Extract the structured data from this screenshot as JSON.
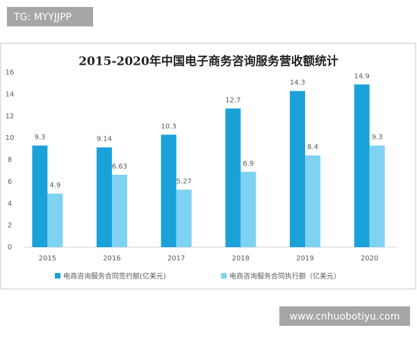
{
  "chart_data": {
    "type": "bar",
    "title": "2015-2020年中国电子商务咨询服务营收额统计",
    "categories": [
      "2015",
      "2016",
      "2017",
      "2018",
      "2019",
      "2020"
    ],
    "series": [
      {
        "name": "电商咨询服务合同签约额(亿美元)",
        "color": "#1aa2d8",
        "values": [
          9.3,
          9.14,
          10.3,
          12.7,
          14.3,
          14.9
        ]
      },
      {
        "name": "电商咨询服务合同执行额（亿美元）",
        "color": "#7fd2f1",
        "values": [
          4.9,
          6.63,
          5.27,
          6.9,
          8.4,
          9.3
        ]
      }
    ],
    "ylim": [
      0,
      16
    ],
    "yticks": [
      0,
      2,
      4,
      6,
      8,
      10,
      12,
      14,
      16
    ],
    "grid": false,
    "legend": "bottom"
  },
  "watermarks": [
    "TG: MYYJJPP",
    "www.cnhuobotiyu.com"
  ]
}
